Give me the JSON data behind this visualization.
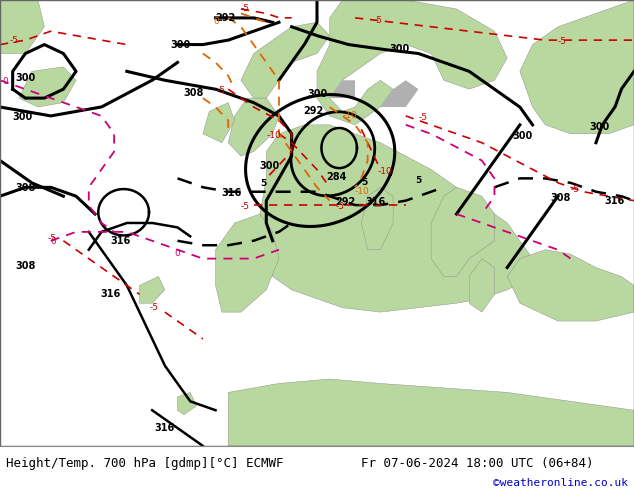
{
  "title_left": "Height/Temp. 700 hPa [gdmp][°C] ECMWF",
  "title_right": "Fr 07-06-2024 18:00 UTC (06+84)",
  "credit": "©weatheronline.co.uk",
  "sea_color": "#d8d8d8",
  "land_color": "#b8d8a0",
  "fig_width": 6.34,
  "fig_height": 4.9,
  "dpi": 100,
  "bottom_bar_color": "#f0f0f0",
  "bottom_bar_height": 0.09,
  "title_left_color": "#000000",
  "title_right_color": "#000000",
  "credit_color": "#0000cc",
  "font_size_title": 9.0,
  "font_size_credit": 8.0
}
